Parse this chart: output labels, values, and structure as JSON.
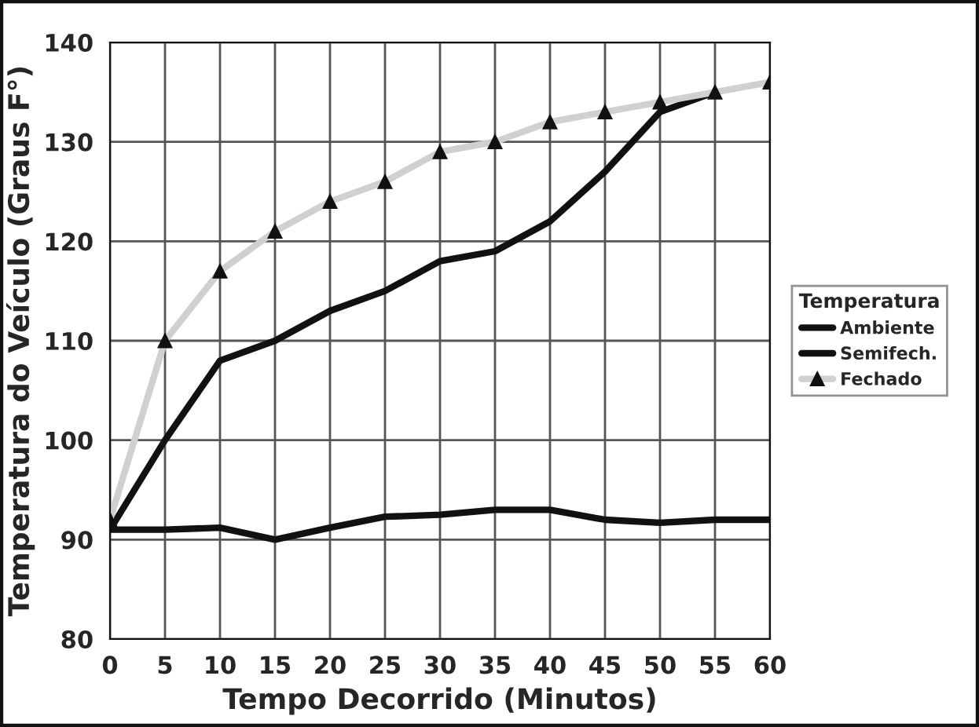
{
  "chart_data": {
    "type": "line",
    "xlabel": "Tempo Decorrido (Minutos)",
    "ylabel": "Temperatura do Veículo (Graus F°)",
    "legend_title": "Temperatura",
    "x": [
      0,
      5,
      10,
      15,
      20,
      25,
      30,
      35,
      40,
      45,
      50,
      55,
      60
    ],
    "series": [
      {
        "name": "Ambiente",
        "color": "#111111",
        "values": [
          91,
          91,
          91.2,
          90,
          91.2,
          92.3,
          92.5,
          93,
          93,
          92,
          91.7,
          92,
          92
        ]
      },
      {
        "name": "Semifech.",
        "color": "#111111",
        "values": [
          91,
          100,
          108,
          110,
          113,
          115,
          118,
          119,
          122,
          127,
          133,
          135,
          null
        ]
      },
      {
        "name": "Fechado",
        "color": "#d0d0d0",
        "marker": "triangle",
        "values": [
          92,
          110,
          117,
          121,
          124,
          126,
          129,
          130,
          132,
          133,
          134,
          135,
          136
        ]
      }
    ],
    "xlim": [
      0,
      60
    ],
    "xticks": [
      0,
      5,
      10,
      15,
      20,
      25,
      30,
      35,
      40,
      45,
      50,
      55,
      60
    ],
    "ylim": [
      80,
      140
    ],
    "yticks": [
      80,
      90,
      100,
      110,
      120,
      130,
      140
    ],
    "grid": true,
    "legend": "right",
    "marker": "none",
    "line_style": "solid"
  }
}
